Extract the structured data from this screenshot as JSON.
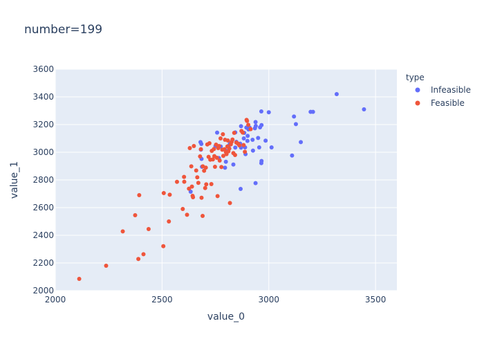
{
  "chart_data": {
    "type": "scatter",
    "title": "number=199",
    "xlabel": "value_0",
    "ylabel": "value_1",
    "xlim": [
      2000,
      3600
    ],
    "ylim": [
      2000,
      3600
    ],
    "x_ticks": [
      "2000",
      "2500",
      "3000",
      "3500"
    ],
    "y_ticks": [
      "2000",
      "2200",
      "2400",
      "2600",
      "2800",
      "3000",
      "3200",
      "3400",
      "3600"
    ],
    "grid": true,
    "legend": {
      "title": "type",
      "placement": "top-right outside"
    },
    "series": [
      {
        "name": "Infeasible",
        "color": "#636efa",
        "points": [
          [
            3318,
            3420
          ],
          [
            3446,
            3310
          ],
          [
            3207,
            3292
          ],
          [
            3196,
            3292
          ],
          [
            3000,
            3289
          ],
          [
            2965,
            3295
          ],
          [
            3118,
            3258
          ],
          [
            3127,
            3203
          ],
          [
            3150,
            3073
          ],
          [
            3109,
            2976
          ],
          [
            3013,
            3035
          ],
          [
            2985,
            3084
          ],
          [
            2966,
            3196
          ],
          [
            2959,
            3180
          ],
          [
            2950,
            3103
          ],
          [
            2938,
            3218
          ],
          [
            2939,
            3190
          ],
          [
            2935,
            3173
          ],
          [
            2924,
            3090
          ],
          [
            2926,
            3012
          ],
          [
            2955,
            3035
          ],
          [
            2966,
            2937
          ],
          [
            2965,
            2921
          ],
          [
            2938,
            2777
          ],
          [
            2910,
            3178
          ],
          [
            2905,
            3165
          ],
          [
            2901,
            3118
          ],
          [
            2900,
            3082
          ],
          [
            2895,
            3178
          ],
          [
            2885,
            3140
          ],
          [
            2883,
            3100
          ],
          [
            2889,
            3035
          ],
          [
            2891,
            2986
          ],
          [
            2870,
            3188
          ],
          [
            2866,
            3062
          ],
          [
            2870,
            3033
          ],
          [
            2868,
            2735
          ],
          [
            2843,
            3143
          ],
          [
            2848,
            3075
          ],
          [
            2843,
            3034
          ],
          [
            2834,
            2911
          ],
          [
            2818,
            3063
          ],
          [
            2812,
            3047
          ],
          [
            2797,
            3015
          ],
          [
            2799,
            2931
          ],
          [
            2795,
            2888
          ],
          [
            2775,
            3041
          ],
          [
            2766,
            2958
          ],
          [
            2758,
            3142
          ],
          [
            2750,
            3044
          ],
          [
            2680,
            3073
          ],
          [
            2684,
            3060
          ],
          [
            2682,
            3019
          ],
          [
            2685,
            2952
          ],
          [
            2687,
            2895
          ],
          [
            2634,
            2715
          ]
        ]
      },
      {
        "name": "Feasible",
        "color": "#ef553b",
        "points": [
          [
            2112,
            2085
          ],
          [
            2238,
            2180
          ],
          [
            2316,
            2428
          ],
          [
            2374,
            2545
          ],
          [
            2389,
            2229
          ],
          [
            2393,
            2690
          ],
          [
            2413,
            2263
          ],
          [
            2437,
            2445
          ],
          [
            2506,
            2321
          ],
          [
            2508,
            2705
          ],
          [
            2532,
            2500
          ],
          [
            2536,
            2693
          ],
          [
            2570,
            2786
          ],
          [
            2597,
            2590
          ],
          [
            2603,
            2822
          ],
          [
            2604,
            2787
          ],
          [
            2617,
            2548
          ],
          [
            2626,
            2737
          ],
          [
            2630,
            3030
          ],
          [
            2637,
            2898
          ],
          [
            2640,
            2752
          ],
          [
            2643,
            2685
          ],
          [
            2645,
            2675
          ],
          [
            2649,
            3045
          ],
          [
            2660,
            2868
          ],
          [
            2665,
            2819
          ],
          [
            2670,
            2779
          ],
          [
            2678,
            2970
          ],
          [
            2682,
            3022
          ],
          [
            2685,
            2671
          ],
          [
            2690,
            2540
          ],
          [
            2691,
            2898
          ],
          [
            2697,
            2866
          ],
          [
            2702,
            2741
          ],
          [
            2705,
            2889
          ],
          [
            2707,
            2768
          ],
          [
            2712,
            3056
          ],
          [
            2718,
            2967
          ],
          [
            2722,
            3065
          ],
          [
            2726,
            2946
          ],
          [
            2731,
            2770
          ],
          [
            2733,
            3010
          ],
          [
            2738,
            2948
          ],
          [
            2743,
            3023
          ],
          [
            2745,
            2972
          ],
          [
            2748,
            2895
          ],
          [
            2753,
            3055
          ],
          [
            2757,
            2960
          ],
          [
            2760,
            2683
          ],
          [
            2763,
            3030
          ],
          [
            2767,
            3045
          ],
          [
            2770,
            2940
          ],
          [
            2774,
            3100
          ],
          [
            2778,
            2893
          ],
          [
            2782,
            3018
          ],
          [
            2785,
            3130
          ],
          [
            2787,
            2974
          ],
          [
            2792,
            3022
          ],
          [
            2795,
            3090
          ],
          [
            2799,
            3001
          ],
          [
            2802,
            2986
          ],
          [
            2806,
            3042
          ],
          [
            2808,
            3085
          ],
          [
            2811,
            3007
          ],
          [
            2815,
            3027
          ],
          [
            2818,
            2633
          ],
          [
            2822,
            3057
          ],
          [
            2826,
            3075
          ],
          [
            2830,
            3092
          ],
          [
            2834,
            2994
          ],
          [
            2838,
            3140
          ],
          [
            2842,
            2980
          ],
          [
            2848,
            3070
          ],
          [
            2856,
            3062
          ],
          [
            2862,
            3050
          ],
          [
            2872,
            3154
          ],
          [
            2878,
            3142
          ],
          [
            2882,
            3052
          ],
          [
            2888,
            3003
          ],
          [
            2896,
            3234
          ],
          [
            2898,
            3226
          ],
          [
            2904,
            3198
          ],
          [
            2915,
            3167
          ]
        ]
      }
    ]
  }
}
